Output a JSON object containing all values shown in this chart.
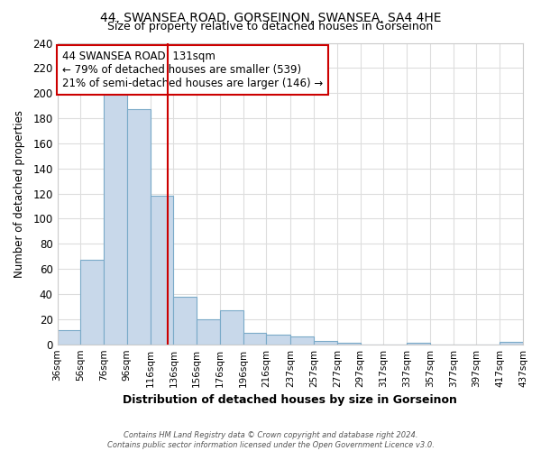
{
  "title": "44, SWANSEA ROAD, GORSEINON, SWANSEA, SA4 4HE",
  "subtitle": "Size of property relative to detached houses in Gorseinon",
  "xlabel": "Distribution of detached houses by size in Gorseinon",
  "ylabel": "Number of detached properties",
  "bar_color": "#c8d8ea",
  "bar_edge_color": "#7aaac8",
  "bins": [
    36,
    56,
    76,
    96,
    116,
    136,
    156,
    176,
    196,
    216,
    237,
    257,
    277,
    297,
    317,
    337,
    357,
    377,
    397,
    417,
    437
  ],
  "counts": [
    11,
    67,
    200,
    187,
    118,
    38,
    20,
    27,
    9,
    8,
    6,
    3,
    1,
    0,
    0,
    1,
    0,
    0,
    0,
    2
  ],
  "tick_labels": [
    "36sqm",
    "56sqm",
    "76sqm",
    "96sqm",
    "116sqm",
    "136sqm",
    "156sqm",
    "176sqm",
    "196sqm",
    "216sqm",
    "237sqm",
    "257sqm",
    "277sqm",
    "297sqm",
    "317sqm",
    "337sqm",
    "357sqm",
    "377sqm",
    "397sqm",
    "417sqm",
    "437sqm"
  ],
  "vline_x": 131,
  "vline_color": "#cc0000",
  "annotation_title": "44 SWANSEA ROAD: 131sqm",
  "annotation_line1": "← 79% of detached houses are smaller (539)",
  "annotation_line2": "21% of semi-detached houses are larger (146) →",
  "ylim": [
    0,
    240
  ],
  "yticks": [
    0,
    20,
    40,
    60,
    80,
    100,
    120,
    140,
    160,
    180,
    200,
    220,
    240
  ],
  "footer_line1": "Contains HM Land Registry data © Crown copyright and database right 2024.",
  "footer_line2": "Contains public sector information licensed under the Open Government Licence v3.0.",
  "bg_color": "#ffffff",
  "grid_color": "#dddddd"
}
